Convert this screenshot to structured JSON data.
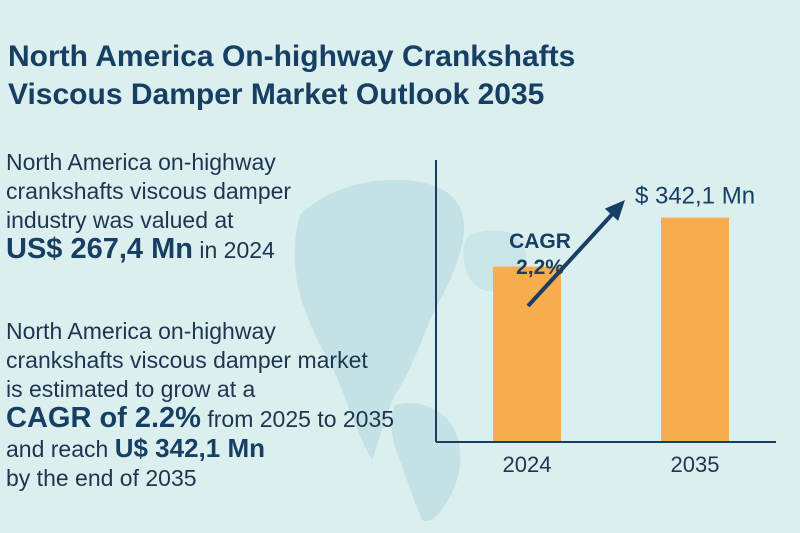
{
  "title_lines": [
    "North America On-highway Crankshafts",
    "Viscous Damper Market Outlook 2035"
  ],
  "para1": {
    "line1": "North America on-highway",
    "line2": "crankshafts viscous damper",
    "line3": "industry was valued at",
    "value": "US$ 267,4 Mn",
    "value_suffix": " in 2024"
  },
  "para2": {
    "line1": "North America on-highway",
    "line2": "crankshafts viscous damper market",
    "line3": "is estimated to grow at a",
    "cagr": "CAGR of 2.2%",
    "cagr_suffix": " from 2025 to 2035",
    "reach_prefix": "and reach ",
    "reach_value": "U$ 342,1 Mn",
    "line6": "by the end of 2035"
  },
  "colors": {
    "bar": "#f8ac4e",
    "axis": "#163f63",
    "arrow": "#163f63",
    "map": "#c4e2e6"
  },
  "chart_data": {
    "type": "bar",
    "categories": [
      "2024",
      "2035"
    ],
    "values": [
      267.4,
      342.1
    ],
    "ylim": [
      0,
      430
    ],
    "data_labels": [
      "",
      "$ 342,1 Mn"
    ],
    "annotation": {
      "label_lines": [
        "CAGR",
        "2,2%"
      ]
    }
  }
}
